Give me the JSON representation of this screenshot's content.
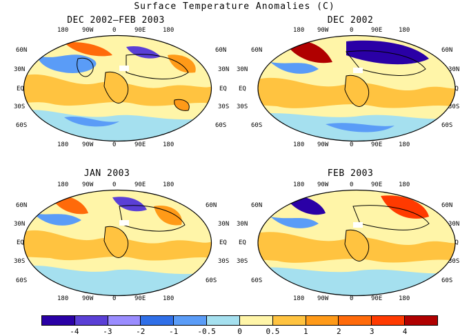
{
  "title": "Surface Temperature Anomalies (C)",
  "panels": [
    {
      "title": "DEC 2002—FEB 2003"
    },
    {
      "title": "DEC 2002"
    },
    {
      "title": "JAN 2003"
    },
    {
      "title": "FEB 2003"
    }
  ],
  "lon_labels": [
    "180",
    "90W",
    "0",
    "90E",
    "180"
  ],
  "lat_labels": [
    "60N",
    "30N",
    "EQ",
    "30S",
    "60S"
  ],
  "colorbar": {
    "colors": [
      "#2a00a6",
      "#5a3fd6",
      "#9a8cff",
      "#2f6fe8",
      "#5a9cf7",
      "#a5e0ef",
      "#fff5a8",
      "#ffc340",
      "#ff9a18",
      "#ff6a0a",
      "#ff3a00",
      "#b00000"
    ],
    "labels": [
      "-4",
      "-3",
      "-2",
      "-1",
      "-0.5",
      "0",
      "0.5",
      "1",
      "2",
      "3",
      "4"
    ]
  }
}
